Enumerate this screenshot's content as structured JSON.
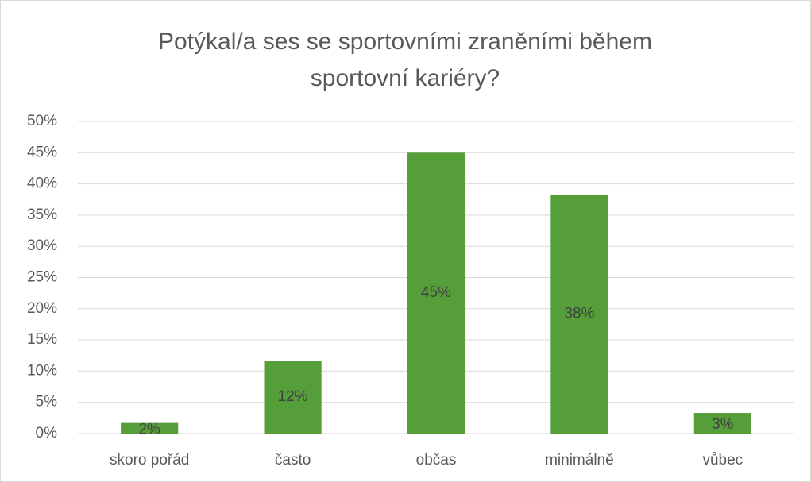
{
  "chart_data": {
    "type": "bar",
    "title": "Potýkal/a ses se sportovními zraněními během sportovní kariéry?",
    "categories": [
      "skoro pořád",
      "často",
      "občas",
      "minimálně",
      "vůbec"
    ],
    "values": [
      1.7,
      11.7,
      45,
      38.3,
      3.3
    ],
    "value_labels": [
      "2%",
      "12%",
      "45%",
      "38%",
      "3%"
    ],
    "color": "#559e3a",
    "ylim": [
      0,
      50
    ],
    "yticks": [
      {
        "value": 0,
        "label": "0%"
      },
      {
        "value": 5,
        "label": "5%"
      },
      {
        "value": 10,
        "label": "10%"
      },
      {
        "value": 15,
        "label": "15%"
      },
      {
        "value": 20,
        "label": "20%"
      },
      {
        "value": 25,
        "label": "25%"
      },
      {
        "value": 30,
        "label": "30%"
      },
      {
        "value": 35,
        "label": "35%"
      },
      {
        "value": 40,
        "label": "40%"
      },
      {
        "value": 45,
        "label": "45%"
      },
      {
        "value": 50,
        "label": "50%"
      }
    ],
    "grid": true
  }
}
